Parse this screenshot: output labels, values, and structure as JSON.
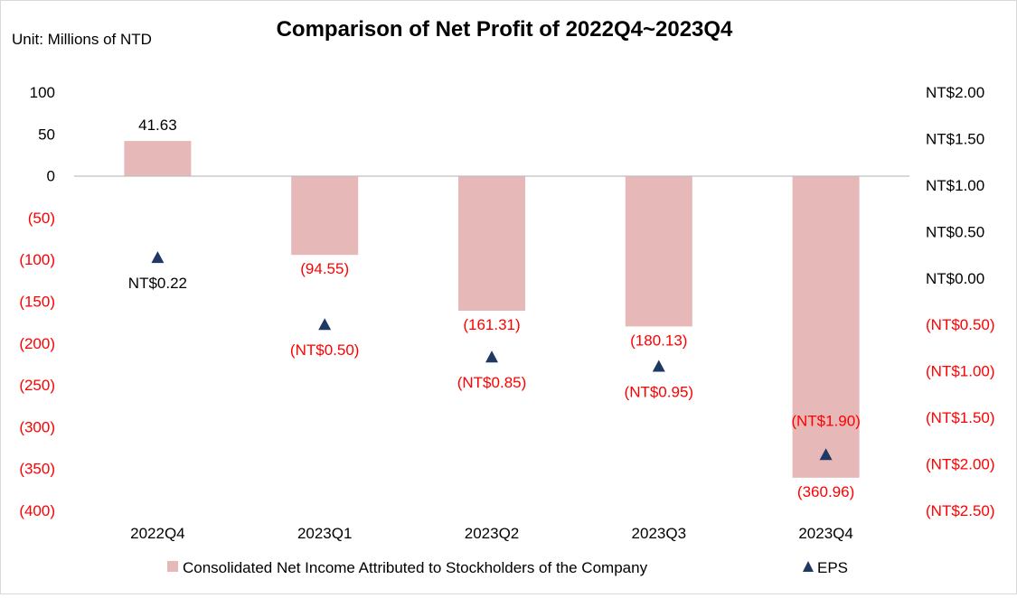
{
  "chart_data": {
    "type": "bar",
    "title": "Comparison of Net Profit of 2022Q4~2023Q4",
    "unit_label": "Unit: Millions of NTD",
    "categories": [
      "2022Q4",
      "2023Q1",
      "2023Q2",
      "2023Q3",
      "2023Q4"
    ],
    "series": [
      {
        "name": "Consolidated Net Income Attributed to Stockholders of the Company",
        "kind": "bar",
        "axis": "left",
        "color": "#e6b8b7",
        "values": [
          41.63,
          -94.55,
          -161.31,
          -180.13,
          -360.96
        ],
        "labels": [
          "41.63",
          "(94.55)",
          "(161.31)",
          "(180.13)",
          "(360.96)"
        ]
      },
      {
        "name": "EPS",
        "kind": "marker",
        "marker": "triangle",
        "axis": "right",
        "color": "#1f3864",
        "values": [
          0.22,
          -0.5,
          -0.85,
          -0.95,
          -1.9
        ],
        "labels": [
          "NT$0.22",
          "(NT$0.50)",
          "(NT$0.85)",
          "(NT$0.95)",
          "(NT$1.90)"
        ]
      }
    ],
    "y_left": {
      "range": [
        -400,
        100
      ],
      "ticks": [
        100,
        50,
        0,
        -50,
        -100,
        -150,
        -200,
        -250,
        -300,
        -350,
        -400
      ],
      "tick_labels": [
        "100",
        "50",
        "0",
        "(50)",
        "(100)",
        "(150)",
        "(200)",
        "(250)",
        "(300)",
        "(350)",
        "(400)"
      ]
    },
    "y_right": {
      "range": [
        -2.5,
        2.0
      ],
      "ticks": [
        2.0,
        1.5,
        1.0,
        0.5,
        0.0,
        -0.5,
        -1.0,
        -1.5,
        -2.0,
        -2.5
      ],
      "tick_labels": [
        "NT$2.00",
        "NT$1.50",
        "NT$1.00",
        "NT$0.50",
        "NT$0.00",
        "(NT$0.50)",
        "(NT$1.00)",
        "(NT$1.50)",
        "(NT$2.00)",
        "(NT$2.50)"
      ]
    },
    "negative_color": "#ff0000",
    "positive_color": "#000000",
    "grid": false,
    "legend": "bottom"
  }
}
